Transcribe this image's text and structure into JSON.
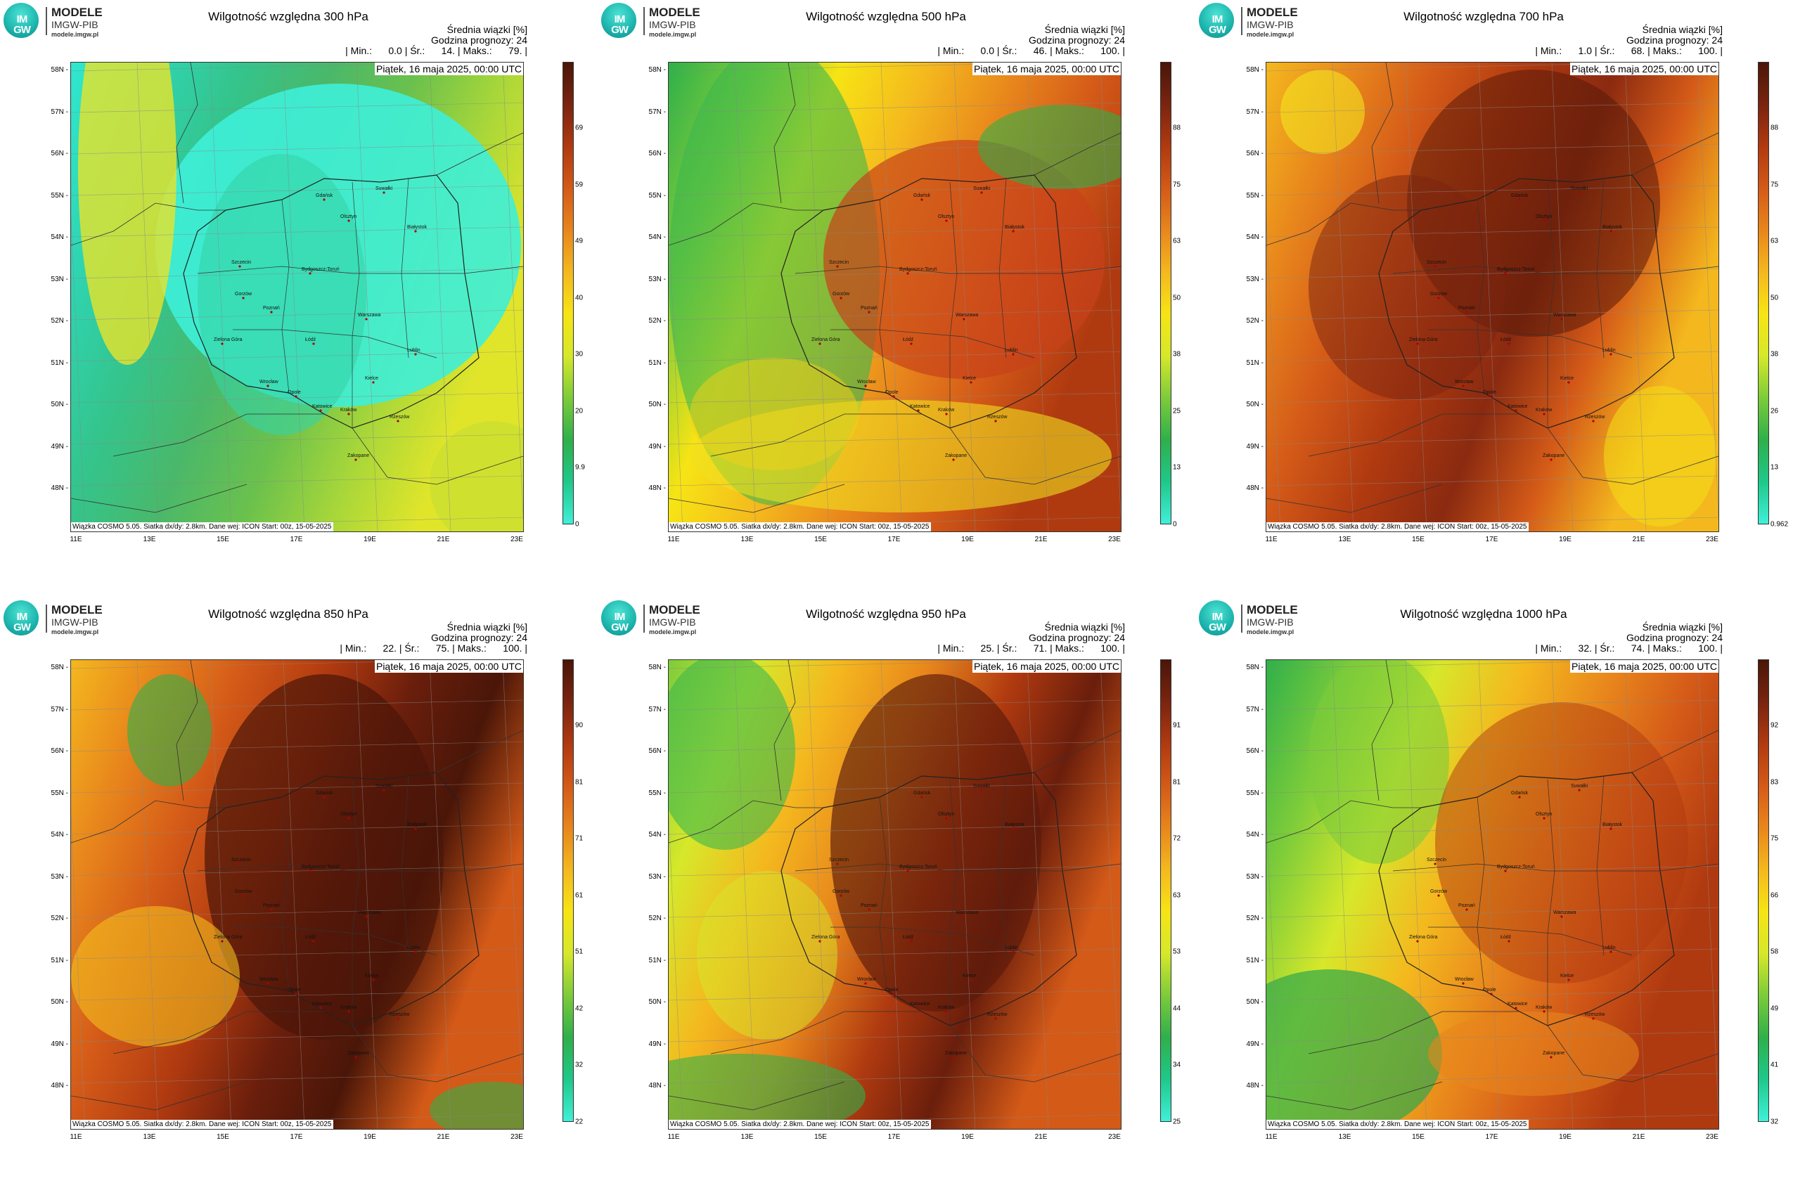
{
  "logo": {
    "line1": "MODELE",
    "line2": "IMGW-PIB",
    "line3": "modele.imgw.pl",
    "mark": "IM GW"
  },
  "common": {
    "info_header": "Średnia wiązki [%]",
    "forecast_hour": "Godzina prognozy: 24",
    "date": "Piątek, 16 maja 2025, 00:00 UTC",
    "credit": "Wiązka COSMO 5.05. Siatka dx/dy: 2.8km. Dane wej: ICON Start: 00z, 15-05-2025",
    "lat_labels": [
      "58N",
      "57N",
      "56N",
      "55N",
      "54N",
      "53N",
      "52N",
      "51N",
      "50N",
      "49N",
      "48N"
    ],
    "lon_labels": [
      "11E",
      "13E",
      "15E",
      "17E",
      "19E",
      "21E",
      "23E"
    ],
    "cities": [
      "Gdańsk",
      "Olsztyn",
      "Suwałki",
      "Białystok",
      "Szczecin",
      "Bydgoszcz-Toruń",
      "Gorzów",
      "Poznań",
      "Warszawa",
      "Zielona Góra",
      "Łódź",
      "Lublin",
      "Wrocław",
      "Kielce",
      "Opole",
      "Katowice",
      "Kraków",
      "Rzeszów",
      "Zakopane"
    ]
  },
  "panels": [
    {
      "title": "Wilgotność względna 300 hPa",
      "stats": "| Min.:      0.0 | Śr.:      14. | Maks.:      79. |",
      "min": 0.0,
      "mean": 14,
      "max": 79,
      "cbar": [
        "69",
        "59",
        "49",
        "40",
        "30",
        "20",
        "9.9",
        "0"
      ],
      "palette": "p300"
    },
    {
      "title": "Wilgotność względna 500 hPa",
      "stats": "| Min.:      0.0 | Śr.:      46. | Maks.:      100. |",
      "min": 0.0,
      "mean": 46,
      "max": 100,
      "cbar": [
        "88",
        "75",
        "63",
        "50",
        "38",
        "25",
        "13",
        "0"
      ],
      "palette": "p500"
    },
    {
      "title": "Wilgotność względna 700 hPa",
      "stats": "| Min.:      1.0 | Śr.:      68. | Maks.:      100. |",
      "min": 1.0,
      "mean": 68,
      "max": 100,
      "cbar": [
        "88",
        "75",
        "63",
        "50",
        "38",
        "26",
        "13",
        "0.962"
      ],
      "palette": "p700"
    },
    {
      "title": "Wilgotność względna 850 hPa",
      "stats": "| Min.:      22. | Śr.:      75. | Maks.:      100. |",
      "min": 22,
      "mean": 75,
      "max": 100,
      "cbar": [
        "90",
        "81",
        "71",
        "61",
        "51",
        "42",
        "32",
        "22"
      ],
      "palette": "p850"
    },
    {
      "title": "Wilgotność względna 950 hPa",
      "stats": "| Min.:      25. | Śr.:      71. | Maks.:      100. |",
      "min": 25,
      "mean": 71,
      "max": 100,
      "cbar": [
        "91",
        "81",
        "72",
        "63",
        "53",
        "44",
        "34",
        "25"
      ],
      "palette": "p950"
    },
    {
      "title": "Wilgotność względna 1000 hPa",
      "stats": "| Min.:      32. | Śr.:      74. | Maks.:      100. |",
      "min": 32,
      "mean": 74,
      "max": 100,
      "cbar": [
        "92",
        "83",
        "75",
        "66",
        "58",
        "49",
        "41",
        "32"
      ],
      "palette": "p1000"
    }
  ],
  "colors": {
    "scale": [
      "#40f0d8",
      "#1fc88a",
      "#2fb04a",
      "#7dcc3a",
      "#d6e82a",
      "#f7e414",
      "#f4b81e",
      "#e8861c",
      "#d45a18",
      "#b03a10",
      "#7a2410",
      "#4a1608"
    ]
  }
}
